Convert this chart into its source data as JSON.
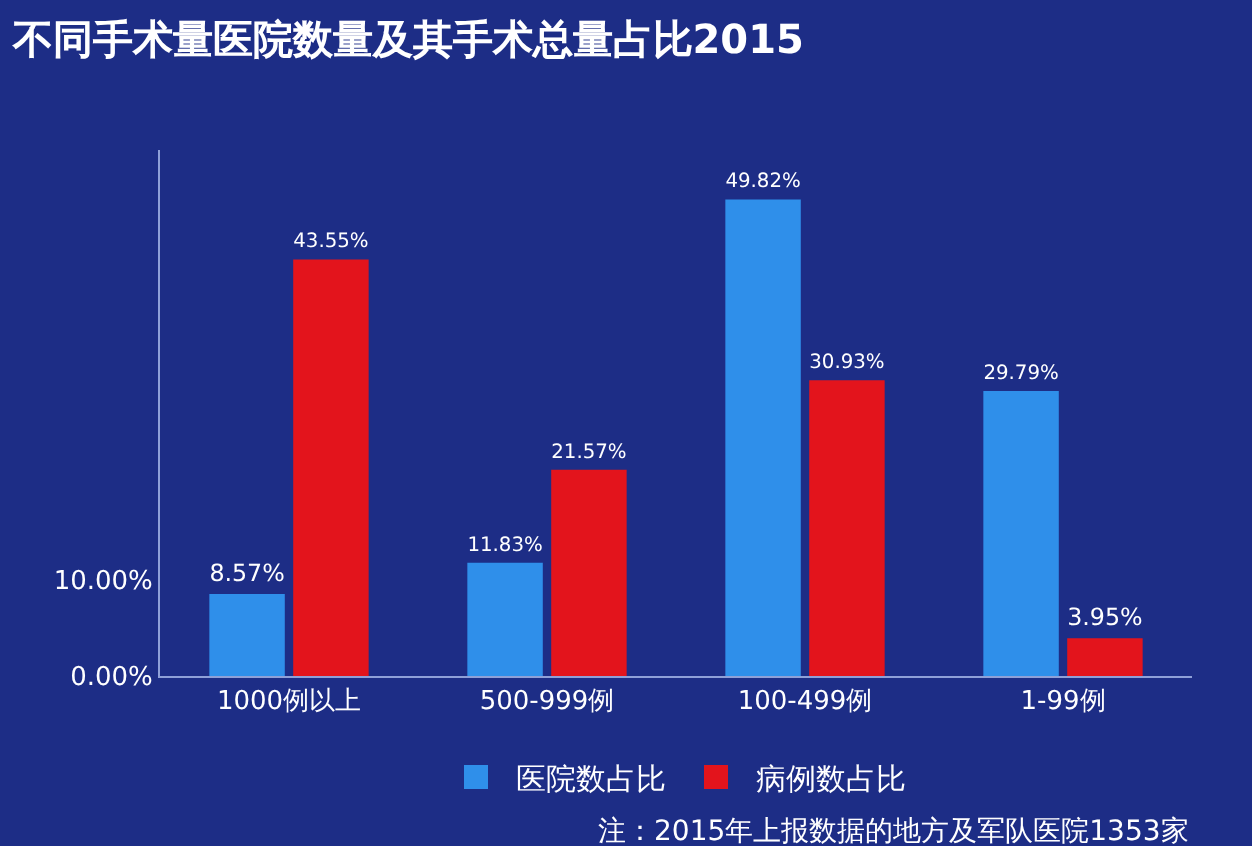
{
  "chart_data": {
    "type": "bar",
    "title": "不同手术量医院数量及其手术总量占比2015",
    "categories": [
      "1000例以上",
      "500-999例",
      "100-499例",
      "1-99例"
    ],
    "series": [
      {
        "name": "医院数占比",
        "color": "#2f8fea",
        "values": [
          8.57,
          11.83,
          49.82,
          29.79
        ],
        "value_labels": [
          "8.57%",
          "11.83%",
          "49.82%",
          "29.79%"
        ]
      },
      {
        "name": "病例数占比",
        "color": "#e3141c",
        "values": [
          43.55,
          21.57,
          30.93,
          3.95
        ],
        "value_labels": [
          "43.55%",
          "21.57%",
          "30.93%",
          "3.95%"
        ]
      }
    ],
    "ylim": [
      0,
      55
    ],
    "yticks": [
      {
        "value": 0,
        "label": "0.00%"
      },
      {
        "value": 10,
        "label": "10.00%"
      }
    ],
    "grid": false,
    "legend": "bottom",
    "annotations": [
      "注：2015年上报数据的地方及军队医院1353家"
    ]
  }
}
